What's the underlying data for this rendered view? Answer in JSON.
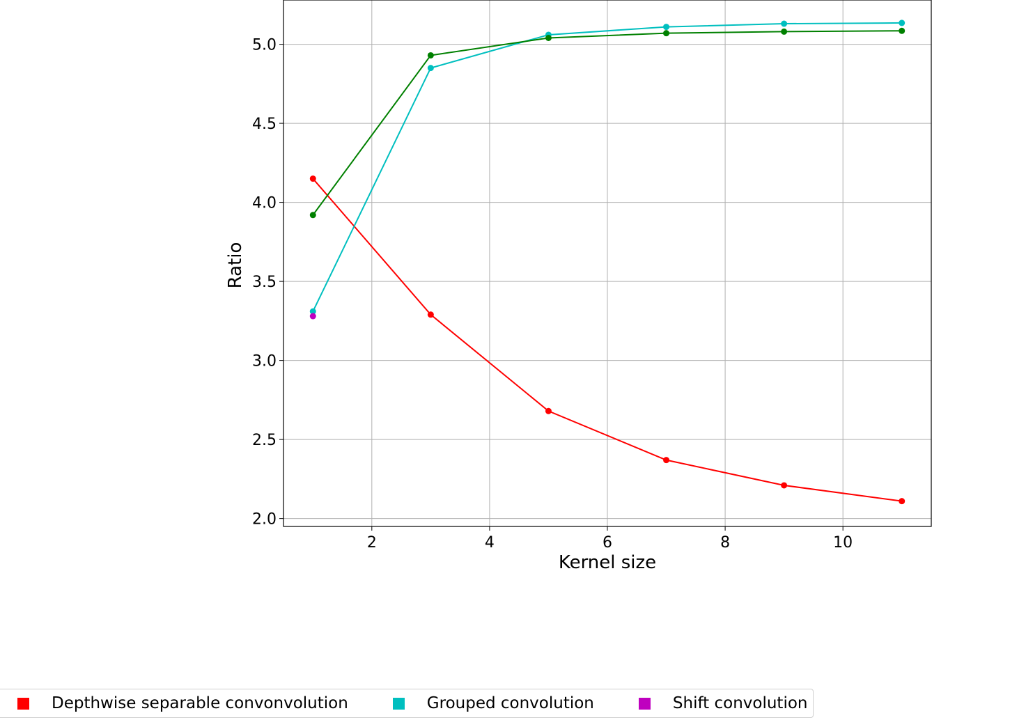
{
  "chart_data": {
    "type": "line",
    "title": "",
    "xlabel": "Kernel size",
    "ylabel": "Ratio",
    "xlim": [
      0.5,
      11.5
    ],
    "ylim": [
      1.95,
      5.28
    ],
    "xticks": [
      2,
      4,
      6,
      8,
      10
    ],
    "yticks": [
      2.0,
      2.5,
      3.0,
      3.5,
      4.0,
      4.5,
      5.0
    ],
    "xtick_labels": [
      "2",
      "4",
      "6",
      "8",
      "10"
    ],
    "ytick_labels": [
      "2.0",
      "2.5",
      "3.0",
      "3.5",
      "4.0",
      "4.5",
      "5.0"
    ],
    "grid": true,
    "legend_position": "bottom-left",
    "series": [
      {
        "name": "Depthwise separable convonvolution",
        "color": "#ff0000",
        "x": [
          1,
          3,
          5,
          7,
          9,
          11
        ],
        "y": [
          4.15,
          3.29,
          2.68,
          2.37,
          2.21,
          2.11
        ]
      },
      {
        "name": "Grouped convolution",
        "color": "#00bfbf",
        "x": [
          1,
          3,
          5,
          7,
          9,
          11
        ],
        "y": [
          3.31,
          4.85,
          5.06,
          5.11,
          5.13,
          5.135
        ]
      },
      {
        "name": "Shift convolution",
        "color": "#bf00bf",
        "x": [
          1
        ],
        "y": [
          3.28
        ]
      },
      {
        "color": "#008000",
        "x": [
          1,
          3,
          5,
          7,
          9,
          11
        ],
        "y": [
          3.92,
          4.93,
          5.04,
          5.07,
          5.08,
          5.085
        ]
      }
    ]
  }
}
